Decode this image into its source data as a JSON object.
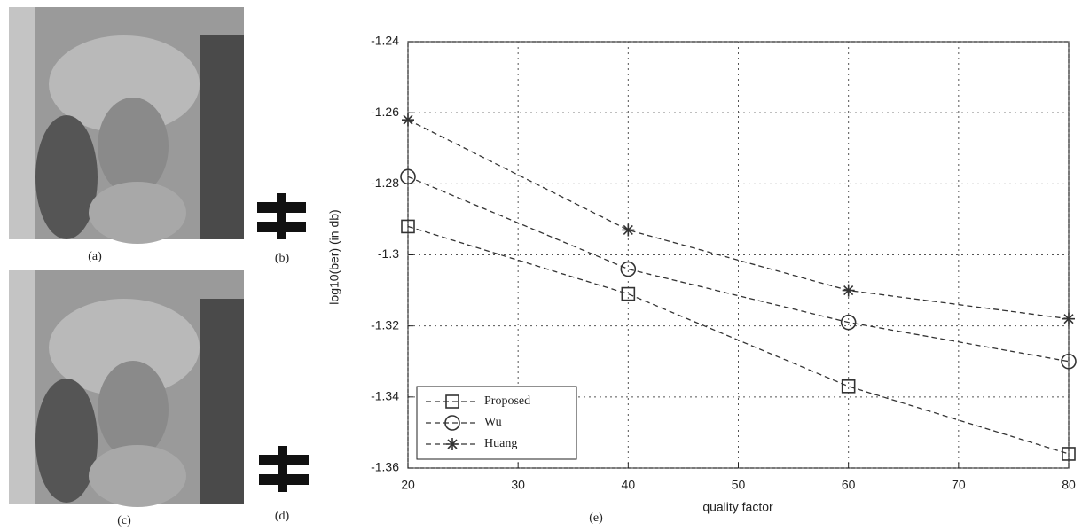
{
  "panel_labels": [
    "(a)",
    "(b)",
    "(c)",
    "(d)",
    "(e)"
  ],
  "chart_data": {
    "type": "line",
    "x_label": "quality factor",
    "y_label": "log10(ber)  (in db)",
    "x": [
      20,
      40,
      60,
      80
    ],
    "series": [
      {
        "name": "Proposed",
        "color": "#333333",
        "marker": "square",
        "values": [
          -1.292,
          -1.311,
          -1.337,
          -1.356
        ]
      },
      {
        "name": "Wu",
        "color": "#333333",
        "marker": "circle",
        "values": [
          -1.278,
          -1.304,
          -1.319,
          -1.33
        ]
      },
      {
        "name": "Huang",
        "color": "#333333",
        "marker": "star",
        "values": [
          -1.262,
          -1.293,
          -1.31,
          -1.318
        ]
      }
    ],
    "xlim": [
      20,
      80
    ],
    "xticks": [
      20,
      30,
      40,
      50,
      60,
      70,
      80
    ],
    "ylim": [
      -1.36,
      -1.24
    ],
    "yticks": [
      -1.36,
      -1.34,
      -1.32,
      -1.3,
      -1.28,
      -1.26,
      -1.24
    ],
    "grid": true,
    "legend": "lower left"
  }
}
